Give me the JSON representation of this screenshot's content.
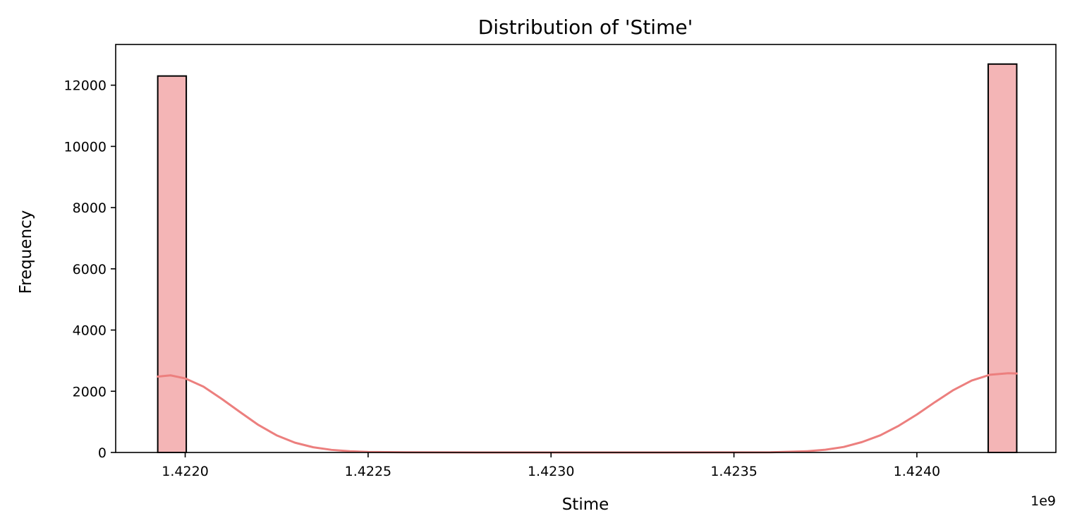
{
  "chart_data": {
    "type": "bar",
    "title": "Distribution of 'Stime'",
    "xlabel": "Stime",
    "ylabel": "Frequency",
    "x_offset_label": "1e9",
    "x_scale": 1000000000,
    "xlim": [
      1.42181,
      1.42438
    ],
    "ylim": [
      0,
      13330
    ],
    "x_ticks": [
      1.422,
      1.4225,
      1.423,
      1.4235,
      1.424
    ],
    "x_tick_labels": [
      "1.4220",
      "1.4225",
      "1.4230",
      "1.4235",
      "1.4240"
    ],
    "y_ticks": [
      0,
      2000,
      4000,
      6000,
      8000,
      10000,
      12000
    ],
    "y_tick_labels": [
      "0",
      "2000",
      "4000",
      "6000",
      "8000",
      "10000",
      "12000"
    ],
    "bins": [
      {
        "x0": 1.421925,
        "x1": 1.422003,
        "count": 12300
      },
      {
        "x0": 1.424195,
        "x1": 1.424273,
        "count": 12690
      }
    ],
    "kde": {
      "x": [
        1.421925,
        1.42196,
        1.422,
        1.42205,
        1.4221,
        1.42215,
        1.4222,
        1.42225,
        1.4223,
        1.42235,
        1.4224,
        1.42245,
        1.4225,
        1.4226,
        1.4228,
        1.4233,
        1.4236,
        1.4237,
        1.42375,
        1.4238,
        1.42385,
        1.4239,
        1.42395,
        1.424,
        1.42405,
        1.4241,
        1.42415,
        1.4242,
        1.42425,
        1.424273
      ],
      "y": [
        2480,
        2520,
        2420,
        2150,
        1750,
        1320,
        900,
        560,
        320,
        170,
        85,
        40,
        18,
        5,
        0,
        0,
        5,
        40,
        90,
        180,
        340,
        560,
        870,
        1240,
        1650,
        2040,
        2350,
        2540,
        2590,
        2580
      ]
    },
    "grid": false,
    "legend": "none",
    "colors": {
      "bar_fill": "#f4b5b6",
      "bar_edge": "#000000",
      "kde_line": "#ec7f7e",
      "axes": "#000000"
    }
  }
}
